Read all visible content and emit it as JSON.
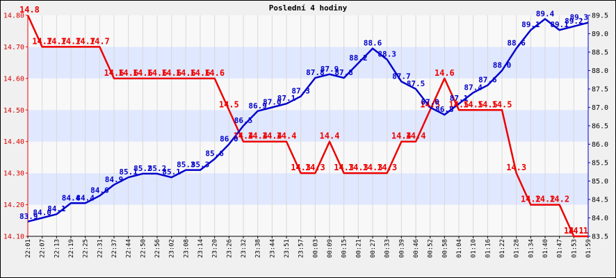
{
  "chart_data": {
    "type": "line",
    "title": "Poslední 4 hodiny",
    "x": [
      "22:01",
      "22:07",
      "22:13",
      "22:19",
      "22:25",
      "22:31",
      "22:37",
      "22:44",
      "22:50",
      "22:56",
      "23:02",
      "23:08",
      "23:14",
      "23:20",
      "23:26",
      "23:32",
      "23:38",
      "23:44",
      "23:51",
      "23:57",
      "00:03",
      "00:09",
      "00:15",
      "00:21",
      "00:27",
      "00:33",
      "00:39",
      "00:46",
      "00:52",
      "00:58",
      "01:04",
      "01:10",
      "01:16",
      "01:22",
      "01:28",
      "01:34",
      "01:40",
      "01:47",
      "01:53",
      "01:59"
    ],
    "y_left": {
      "range": [
        14.1,
        14.8
      ],
      "ticks": [
        "14.10",
        "14.20",
        "14.30",
        "14.40",
        "14.50",
        "14.60",
        "14.70",
        "14.80"
      ],
      "color": "#ee0000"
    },
    "y_right": {
      "range": [
        83.5,
        89.5
      ],
      "ticks": [
        "83.5",
        "84.0",
        "84.5",
        "85.0",
        "85.5",
        "86.0",
        "86.5",
        "87.0",
        "87.5",
        "88.0",
        "88.5",
        "89.0",
        "89.5"
      ],
      "color": "#0000cc"
    },
    "grid": true,
    "band_colors": [
      "#f8f8f8",
      "#e0e8ff"
    ],
    "series": [
      {
        "axis": "left",
        "color": "#ee0000",
        "values": [
          14.8,
          14.7,
          14.7,
          14.7,
          14.7,
          14.7,
          14.6,
          14.6,
          14.6,
          14.6,
          14.6,
          14.6,
          14.6,
          14.6,
          14.5,
          14.4,
          14.4,
          14.4,
          14.4,
          14.3,
          14.3,
          14.4,
          14.3,
          14.3,
          14.3,
          14.3,
          14.4,
          14.4,
          14.5,
          14.6,
          14.5,
          14.5,
          14.5,
          14.5,
          14.3,
          14.2,
          14.2,
          14.2,
          14.1,
          14.1
        ],
        "labels": [
          "14.8",
          "14.7",
          "14.7",
          "14.7",
          "14.7",
          "14.7",
          "14.6",
          "14.6",
          "14.6",
          "14.6",
          "14.6",
          "14.6",
          "14.6",
          "14.6",
          "14.5",
          "14.4",
          "14.4",
          "14.4",
          "14.4",
          "14.3",
          "14.3",
          "14.4",
          "14.3",
          "14.3",
          "14.3",
          "14.3",
          "14.4",
          "14.4",
          "14.5",
          "14.6",
          "14.5",
          "14.5",
          "14.5",
          "14.5",
          "14.3",
          "14.2",
          "14.2",
          "14.2",
          "14.1",
          "14.1"
        ]
      },
      {
        "axis": "right",
        "color": "#0000cc",
        "values": [
          83.9,
          84.0,
          84.1,
          84.4,
          84.4,
          84.6,
          84.9,
          85.1,
          85.2,
          85.2,
          85.1,
          85.3,
          85.3,
          85.6,
          86.0,
          86.5,
          86.9,
          87.0,
          87.1,
          87.3,
          87.8,
          87.9,
          87.8,
          88.2,
          88.6,
          88.3,
          87.7,
          87.5,
          87.0,
          86.8,
          87.1,
          87.4,
          87.6,
          88.0,
          88.6,
          89.1,
          89.4,
          89.1,
          89.2,
          89.3
        ],
        "labels": [
          "83.9",
          "84.0",
          "84.1",
          "84.4",
          "84.4",
          "84.6",
          "84.9",
          "85.1",
          "85.2",
          "85.2",
          "85.1",
          "85.3",
          "85.3",
          "85.6",
          "86.0",
          "86.5",
          "86.9",
          "87.0",
          "87.1",
          "87.3",
          "87.8",
          "87.9",
          "87.8",
          "88.2",
          "88.6",
          "88.3",
          "87.7",
          "87.5",
          "87.0",
          "86.8",
          "87.1",
          "87.4",
          "87.6",
          "88.0",
          "88.6",
          "89.1",
          "89.4",
          "89.1",
          "89.2",
          "89.3"
        ]
      }
    ]
  }
}
